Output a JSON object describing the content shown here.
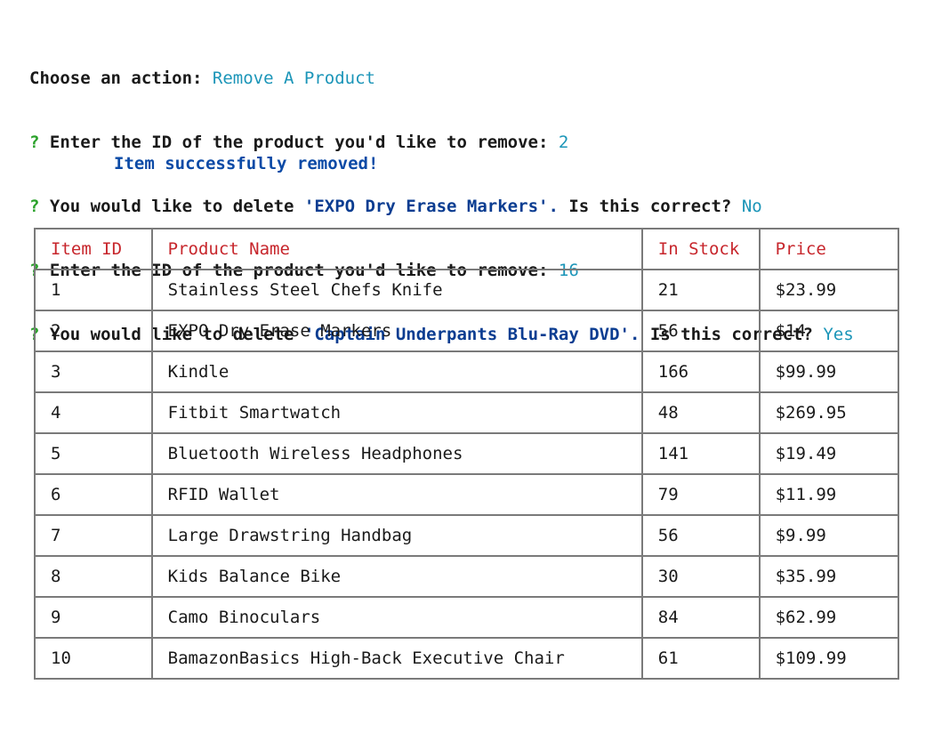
{
  "prompt": {
    "choose_label": "Choose an action:",
    "choose_value": "Remove A Product",
    "q_mark": "?",
    "enter_id_label": "Enter the ID of the product you'd like to remove:",
    "first_id": "2",
    "confirm_prefix": "You would like to delete",
    "first_product": "'EXPO Dry Erase Markers'.",
    "confirm_suffix": "Is this correct?",
    "first_answer": "No",
    "second_id": "16",
    "second_product": "'Captain Underpants Blu-Ray DVD'.",
    "second_answer": "Yes",
    "success_message": "Item successfully removed!"
  },
  "table": {
    "headers": [
      "Item ID",
      "Product Name",
      "In Stock",
      "Price"
    ],
    "rows": [
      [
        "1",
        "Stainless Steel Chefs Knife",
        "21",
        "$23.99"
      ],
      [
        "2",
        "EXPO Dry Erase Markers",
        "56",
        "$14"
      ],
      [
        "3",
        "Kindle",
        "166",
        "$99.99"
      ],
      [
        "4",
        "Fitbit Smartwatch",
        "48",
        "$269.95"
      ],
      [
        "5",
        "Bluetooth Wireless Headphones",
        "141",
        "$19.49"
      ],
      [
        "6",
        "RFID Wallet",
        "79",
        "$11.99"
      ],
      [
        "7",
        "Large Drawstring Handbag",
        "56",
        "$9.99"
      ],
      [
        "8",
        "Kids Balance Bike",
        "30",
        "$35.99"
      ],
      [
        "9",
        "Camo Binoculars",
        "84",
        "$62.99"
      ],
      [
        "10",
        "BamazonBasics High-Back Executive Chair",
        "61",
        "$109.99"
      ]
    ]
  },
  "colors": {
    "prompt_mark": "#2aa12a",
    "answer": "#1b95b8",
    "product_name": "#0b3d91",
    "success": "#0b4aa6",
    "table_header": "#c7262c",
    "table_border": "#7a7a7a"
  }
}
